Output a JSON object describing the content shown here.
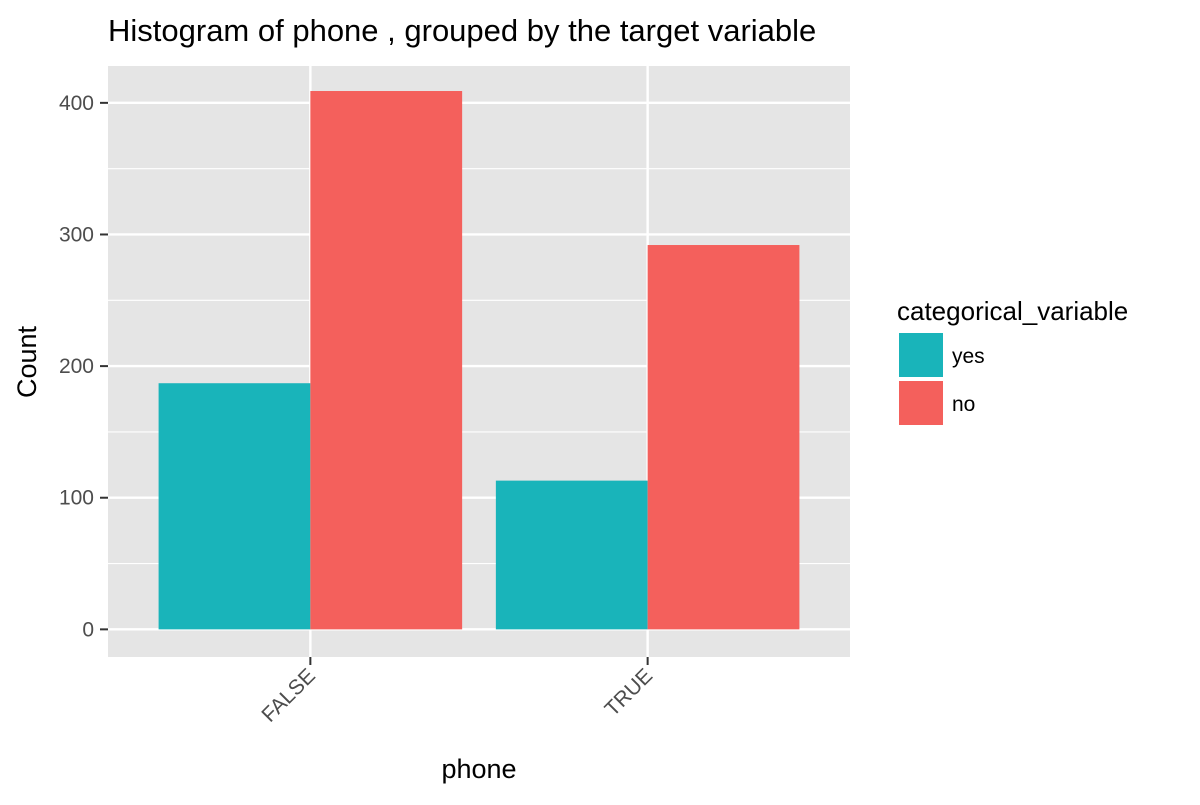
{
  "chart_data": {
    "type": "bar",
    "title": "Histogram of phone , grouped by the target variable",
    "xlabel": "phone",
    "ylabel": "Count",
    "categories": [
      "FALSE",
      "TRUE"
    ],
    "series": [
      {
        "name": "yes",
        "values": [
          187,
          113
        ],
        "color": "#19B4BA"
      },
      {
        "name": "no",
        "values": [
          409,
          292
        ],
        "color": "#F4605C"
      }
    ],
    "yticks": [
      0,
      100,
      200,
      300,
      400
    ],
    "ylim": [
      -21,
      428
    ],
    "grid": true,
    "legend": {
      "title": "categorical_variable",
      "position": "right",
      "entries": [
        "yes",
        "no"
      ]
    },
    "x_tick_rotation": 45,
    "colors": {
      "panel_background": "#E5E5E5",
      "grid_line": "#FFFFFF",
      "text": "#000000",
      "tick_text": "#4D4D4D"
    }
  }
}
